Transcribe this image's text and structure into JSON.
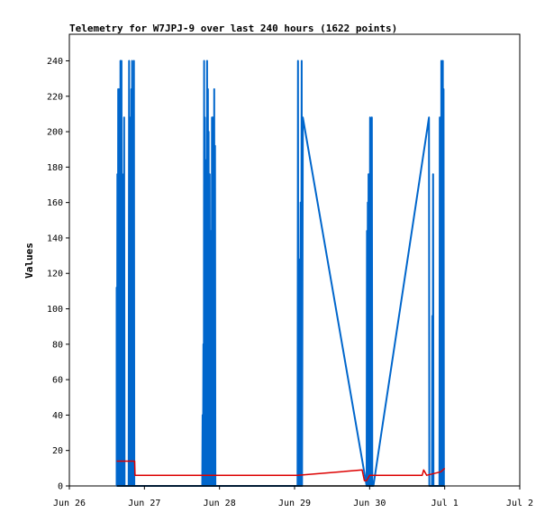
{
  "chart_data": {
    "type": "line",
    "title": "Telemetry for W7JPJ-9 over last 240 hours (1622 points)",
    "xlabel": "",
    "ylabel": "Values",
    "xlim": [
      "Jun 26",
      "Jul 2"
    ],
    "ylim": [
      0,
      255
    ],
    "x_ticks": [
      "Jun 26",
      "Jun 27",
      "Jun 28",
      "Jun 29",
      "Jun 30",
      "Jul 1",
      "Jul 2"
    ],
    "y_ticks": [
      0,
      20,
      40,
      60,
      80,
      100,
      120,
      140,
      160,
      180,
      200,
      220,
      240
    ],
    "grid": false,
    "x_unit": "days since Jun 26 00:00",
    "series": [
      {
        "color": "#0066cc",
        "points": [
          [
            0.63,
            0
          ],
          [
            0.63,
            112
          ],
          [
            0.635,
            0
          ],
          [
            0.64,
            176
          ],
          [
            0.645,
            0
          ],
          [
            0.65,
            224
          ],
          [
            0.655,
            0
          ],
          [
            0.66,
            192
          ],
          [
            0.665,
            0
          ],
          [
            0.67,
            224
          ],
          [
            0.675,
            0
          ],
          [
            0.68,
            240
          ],
          [
            0.685,
            0
          ],
          [
            0.695,
            240
          ],
          [
            0.7,
            0
          ],
          [
            0.705,
            176
          ],
          [
            0.71,
            0
          ],
          [
            0.715,
            48
          ],
          [
            0.72,
            0
          ],
          [
            0.73,
            208
          ],
          [
            0.735,
            0
          ],
          [
            0.79,
            0
          ],
          [
            0.795,
            240
          ],
          [
            0.8,
            0
          ],
          [
            0.805,
            184
          ],
          [
            0.81,
            0
          ],
          [
            0.815,
            208
          ],
          [
            0.82,
            0
          ],
          [
            0.825,
            224
          ],
          [
            0.83,
            0
          ],
          [
            0.835,
            240
          ],
          [
            0.84,
            0
          ],
          [
            0.85,
            224
          ],
          [
            0.855,
            0
          ],
          [
            0.86,
            240
          ],
          [
            0.865,
            0
          ],
          [
            0.87,
            0
          ],
          [
            1.77,
            0
          ],
          [
            1.775,
            40
          ],
          [
            1.78,
            0
          ],
          [
            1.785,
            80
          ],
          [
            1.79,
            0
          ],
          [
            1.795,
            240
          ],
          [
            1.8,
            0
          ],
          [
            1.805,
            208
          ],
          [
            1.81,
            0
          ],
          [
            1.815,
            120
          ],
          [
            1.82,
            0
          ],
          [
            1.825,
            184
          ],
          [
            1.83,
            0
          ],
          [
            1.835,
            240
          ],
          [
            1.84,
            0
          ],
          [
            1.845,
            224
          ],
          [
            1.85,
            0
          ],
          [
            1.855,
            200
          ],
          [
            1.86,
            0
          ],
          [
            1.87,
            176
          ],
          [
            1.875,
            0
          ],
          [
            1.88,
            80
          ],
          [
            1.885,
            0
          ],
          [
            1.89,
            144
          ],
          [
            1.895,
            0
          ],
          [
            1.9,
            208
          ],
          [
            1.905,
            0
          ],
          [
            1.91,
            208
          ],
          [
            1.915,
            0
          ],
          [
            1.92,
            176
          ],
          [
            1.925,
            0
          ],
          [
            1.93,
            224
          ],
          [
            1.935,
            0
          ],
          [
            1.94,
            192
          ],
          [
            1.945,
            0
          ],
          [
            1.95,
            0
          ],
          [
            3.04,
            0
          ],
          [
            3.045,
            240
          ],
          [
            3.05,
            0
          ],
          [
            3.055,
            128
          ],
          [
            3.06,
            0
          ],
          [
            3.065,
            64
          ],
          [
            3.07,
            0
          ],
          [
            3.08,
            160
          ],
          [
            3.085,
            0
          ],
          [
            3.095,
            240
          ],
          [
            3.1,
            0
          ],
          [
            3.11,
            208
          ],
          [
            3.96,
            0
          ],
          [
            3.965,
            144
          ],
          [
            3.97,
            0
          ],
          [
            3.975,
            160
          ],
          [
            3.98,
            0
          ],
          [
            3.985,
            176
          ],
          [
            3.99,
            0
          ],
          [
            3.995,
            176
          ],
          [
            4.0,
            0
          ],
          [
            4.005,
            208
          ],
          [
            4.01,
            0
          ],
          [
            4.015,
            192
          ],
          [
            4.02,
            0
          ],
          [
            4.03,
            208
          ],
          [
            4.035,
            0
          ],
          [
            4.05,
            0
          ],
          [
            4.79,
            208
          ],
          [
            4.795,
            0
          ],
          [
            4.83,
            0
          ],
          [
            4.835,
            96
          ],
          [
            4.84,
            0
          ],
          [
            4.845,
            176
          ],
          [
            4.85,
            0
          ],
          [
            4.93,
            0
          ],
          [
            4.935,
            208
          ],
          [
            4.94,
            0
          ],
          [
            4.945,
            192
          ],
          [
            4.95,
            0
          ],
          [
            4.955,
            240
          ],
          [
            4.96,
            0
          ],
          [
            4.965,
            224
          ],
          [
            4.97,
            0
          ],
          [
            4.975,
            240
          ],
          [
            4.98,
            0
          ],
          [
            4.985,
            224
          ],
          [
            4.99,
            0
          ],
          [
            5.0,
            0
          ]
        ]
      },
      {
        "color": "#dd0000",
        "points": [
          [
            0.63,
            14
          ],
          [
            0.87,
            14
          ],
          [
            0.875,
            6
          ],
          [
            1.8,
            6
          ],
          [
            3.04,
            6
          ],
          [
            3.9,
            9
          ],
          [
            3.93,
            3
          ],
          [
            3.96,
            3
          ],
          [
            4.0,
            6
          ],
          [
            4.7,
            6
          ],
          [
            4.72,
            9
          ],
          [
            4.76,
            6
          ],
          [
            4.95,
            8
          ],
          [
            5.0,
            10
          ]
        ]
      },
      {
        "color": "#000000",
        "points": [
          [
            0.63,
            0
          ],
          [
            5.0,
            0
          ]
        ]
      }
    ]
  }
}
